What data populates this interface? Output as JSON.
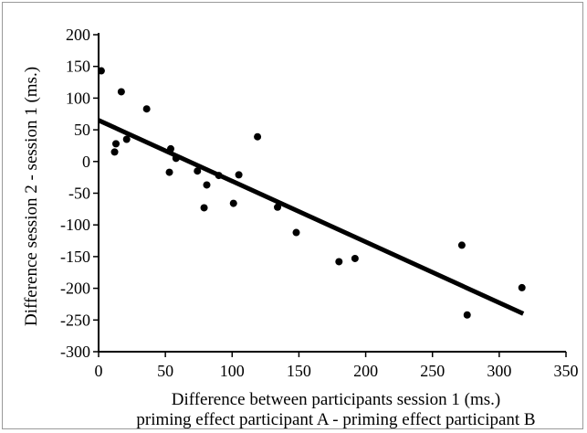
{
  "chart_data": {
    "type": "scatter",
    "title": "",
    "xlabel": "Difference between participants session 1 (ms.)",
    "xlabel2": "priming effect participant A - priming effect participant B",
    "ylabel": "Difference session 2 - session 1 (ms.)",
    "xlim": [
      0,
      350
    ],
    "ylim": [
      -300,
      200
    ],
    "xticks": [
      0,
      50,
      100,
      150,
      200,
      250,
      300,
      350
    ],
    "yticks": [
      -300,
      -250,
      -200,
      -150,
      -100,
      -50,
      0,
      50,
      100,
      150,
      200
    ],
    "grid": false,
    "legend": "none",
    "colors": {
      "points": "#000000",
      "line": "#000000",
      "axis": "#000000"
    },
    "series": [
      {
        "values": [
          [
            2,
            143
          ],
          [
            17,
            110
          ],
          [
            36,
            83
          ],
          [
            12,
            15
          ],
          [
            13,
            28
          ],
          [
            21,
            35
          ],
          [
            53,
            -17
          ],
          [
            54,
            20
          ],
          [
            58,
            5
          ],
          [
            74,
            -15
          ],
          [
            79,
            -73
          ],
          [
            81,
            -37
          ],
          [
            90,
            -22
          ],
          [
            101,
            -66
          ],
          [
            105,
            -21
          ],
          [
            119,
            39
          ],
          [
            134,
            -72
          ],
          [
            148,
            -112
          ],
          [
            180,
            -158
          ],
          [
            192,
            -153
          ],
          [
            272,
            -132
          ],
          [
            276,
            -242
          ],
          [
            317,
            -199
          ]
        ]
      }
    ],
    "trendline": {
      "x": [
        0,
        318
      ],
      "y": [
        65,
        -240
      ]
    }
  }
}
